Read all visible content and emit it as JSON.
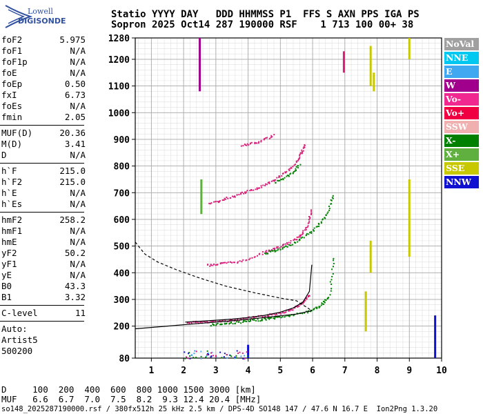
{
  "logo": {
    "brand": "Lowell",
    "product": "DIGISONDE"
  },
  "header": {
    "line1": "Statio YYYY DAY   DDD HHMMSS P1  FFS S AXN PPS IGA PS",
    "line2": "Sopron 2025 Oct14 287 190000 RSF    1 713 100 00+ 38"
  },
  "params": {
    "group1": [
      {
        "k": "foF2",
        "v": "5.975"
      },
      {
        "k": "foF1",
        "v": "N/A"
      },
      {
        "k": "foF1p",
        "v": "N/A"
      },
      {
        "k": "foE",
        "v": "N/A"
      },
      {
        "k": "foEp",
        "v": "0.50"
      },
      {
        "k": "fxI",
        "v": "6.73"
      },
      {
        "k": "foEs",
        "v": "N/A"
      },
      {
        "k": "fmin",
        "v": "2.05"
      }
    ],
    "group2": [
      {
        "k": "MUF(D)",
        "v": "20.36"
      },
      {
        "k": "M(D)",
        "v": "3.41"
      },
      {
        "k": "D",
        "v": "N/A"
      }
    ],
    "group3": [
      {
        "k": "h`F",
        "v": "215.0"
      },
      {
        "k": "h`F2",
        "v": "215.0"
      },
      {
        "k": "h`E",
        "v": "N/A"
      },
      {
        "k": "h`Es",
        "v": "N/A"
      }
    ],
    "group4": [
      {
        "k": "hmF2",
        "v": "258.2"
      },
      {
        "k": "hmF1",
        "v": "N/A"
      },
      {
        "k": "hmE",
        "v": "N/A"
      },
      {
        "k": "yF2",
        "v": "50.2"
      },
      {
        "k": "yF1",
        "v": "N/A"
      },
      {
        "k": "yE",
        "v": "N/A"
      },
      {
        "k": "B0",
        "v": "43.3"
      },
      {
        "k": "B1",
        "v": "3.32"
      }
    ],
    "group5": [
      {
        "k": "C-level",
        "v": "11"
      }
    ],
    "auto": [
      "Auto:",
      "Artist5",
      "500200"
    ]
  },
  "legend": [
    {
      "label": "NoVal",
      "color": "#a0a0a0"
    },
    {
      "label": "NNE",
      "color": "#00c8f0"
    },
    {
      "label": "E",
      "color": "#40a8f0"
    },
    {
      "label": "W",
      "color": "#a0008c"
    },
    {
      "label": "Vo-",
      "color": "#f02890"
    },
    {
      "label": "Vo+",
      "color": "#f00040"
    },
    {
      "label": "SSW",
      "color": "#f0b0b0"
    },
    {
      "label": "X-",
      "color": "#008000"
    },
    {
      "label": "X+",
      "color": "#60b040"
    },
    {
      "label": "SSE",
      "color": "#c8c800"
    },
    {
      "label": "NNW",
      "color": "#1010d0"
    }
  ],
  "muf_table": {
    "line1": "D     100  200  400  600  800 1000 1500 3000 [km]",
    "line2": "MUF   6.6  6.7  7.0  7.5  8.2  9.3 12.4 20.4 [MHz]"
  },
  "footer": "so148_2025287190000.rsf / 380fx512h 25 kHz 2.5 km / DPS-4D SO148 147 / 47.6 N 16.7 E  Ion2Png 1.3.20",
  "chart_data": {
    "type": "scatter",
    "xlim": [
      0.5,
      10
    ],
    "ylim": [
      80,
      1280
    ],
    "xticks": [
      1,
      2,
      3,
      4,
      5,
      6,
      7,
      8,
      9,
      10
    ],
    "yticks": [
      80,
      200,
      300,
      400,
      500,
      600,
      700,
      800,
      900,
      1000,
      1100,
      1200,
      1280
    ],
    "grid": true,
    "legend_position": "right",
    "traces": [
      {
        "name": "O-mode 1st hop",
        "color": "#d81f7a",
        "x": [
          2.1,
          2.5,
          3.0,
          3.5,
          4.0,
          4.5,
          5.0,
          5.4,
          5.7,
          5.9
        ],
        "y": [
          215,
          217,
          220,
          225,
          232,
          240,
          252,
          268,
          290,
          320
        ]
      },
      {
        "name": "X-mode 1st hop",
        "color": "#008000",
        "x": [
          2.8,
          3.3,
          3.8,
          4.3,
          4.8,
          5.3,
          5.8,
          6.2,
          6.5,
          6.65
        ],
        "y": [
          207,
          212,
          218,
          225,
          233,
          242,
          255,
          275,
          310,
          470
        ]
      },
      {
        "name": "O-mode 2nd hop",
        "color": "#d81f7a",
        "x": [
          2.7,
          3.2,
          3.8,
          4.5,
          5.0,
          5.5,
          5.8,
          5.95
        ],
        "y": [
          430,
          437,
          445,
          480,
          500,
          530,
          570,
          640
        ]
      },
      {
        "name": "X-mode 2nd hop",
        "color": "#008000",
        "x": [
          4.5,
          5.0,
          5.5,
          6.0,
          6.4,
          6.65
        ],
        "y": [
          475,
          490,
          520,
          560,
          615,
          700
        ]
      },
      {
        "name": "O-mode 3rd hop",
        "color": "#d81f7a",
        "x": [
          2.8,
          3.3,
          3.8,
          4.3,
          4.8,
          5.3,
          5.6,
          5.75
        ],
        "y": [
          660,
          680,
          700,
          720,
          750,
          790,
          840,
          885
        ]
      },
      {
        "name": "X-mode 3rd hop",
        "color": "#008000",
        "x": [
          4.8,
          5.3,
          5.6
        ],
        "y": [
          740,
          770,
          810
        ]
      },
      {
        "name": "O-mode 4th hop",
        "color": "#d81f7a",
        "x": [
          3.8,
          4.3,
          4.8
        ],
        "y": [
          880,
          890,
          920
        ]
      },
      {
        "name": "O-mode trace profile",
        "color": "#000000",
        "x": [
          2.05,
          2.5,
          3.0,
          3.5,
          4.0,
          4.5,
          5.0,
          5.4,
          5.7,
          5.9,
          5.975
        ],
        "y": [
          215,
          218,
          222,
          226,
          232,
          240,
          252,
          268,
          290,
          330,
          430
        ]
      },
      {
        "name": "X-mode trace profile",
        "color": "#000000",
        "x": [
          0.5,
          1.5,
          2.5,
          3.5,
          4.5,
          5.5,
          5.975
        ],
        "y": [
          190,
          200,
          210,
          220,
          232,
          245,
          258
        ]
      },
      {
        "name": "Density profile",
        "color": "#000000",
        "dashed": true,
        "x": [
          0.5,
          0.8,
          1.2,
          1.8,
          2.5,
          3.3,
          4.2,
          5.0,
          5.5,
          5.975
        ],
        "y": [
          515,
          470,
          440,
          410,
          380,
          350,
          325,
          305,
          295,
          258
        ]
      }
    ],
    "vertical_bars": [
      {
        "x": 2.5,
        "y": [
          1080,
          1280
        ],
        "color": "#a0008c"
      },
      {
        "x": 6.97,
        "y": [
          1150,
          1230
        ],
        "color": "#d81f7a"
      },
      {
        "x": 7.8,
        "y": [
          1100,
          1250
        ],
        "color": "#c8c800"
      },
      {
        "x": 7.9,
        "y": [
          1080,
          1150
        ],
        "color": "#c8c800"
      },
      {
        "x": 9.0,
        "y": [
          1200,
          1280
        ],
        "color": "#c8c800"
      },
      {
        "x": 9.0,
        "y": [
          460,
          750
        ],
        "color": "#c8c800"
      },
      {
        "x": 7.8,
        "y": [
          400,
          520
        ],
        "color": "#c8c800"
      },
      {
        "x": 7.65,
        "y": [
          180,
          330
        ],
        "color": "#c8c800"
      },
      {
        "x": 4.0,
        "y": [
          80,
          130
        ],
        "color": "#1010d0"
      },
      {
        "x": 2.55,
        "y": [
          620,
          750
        ],
        "color": "#60b040"
      },
      {
        "x": 9.8,
        "y": [
          80,
          240
        ],
        "color": "#1010d0"
      }
    ]
  }
}
